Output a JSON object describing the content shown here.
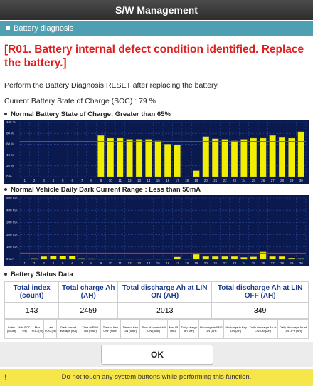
{
  "header": {
    "title": "S/W Management"
  },
  "section": {
    "title": "Battery diagnosis"
  },
  "alert": "[R01. Battery internal defect condition identified. Replace the battery.]",
  "instruction": "Perform the Battery Diagnosis RESET after replacing the battery.",
  "soc_status": "Current Battery State of Charge (SOC) : 79 %",
  "charts": [
    {
      "type": "bar",
      "title": "Normal Battery State of Charge: Greater than 65%",
      "categories": [
        "1",
        "2",
        "3",
        "4",
        "5",
        "6",
        "7",
        "8",
        "9",
        "10",
        "11",
        "12",
        "13",
        "14",
        "15",
        "16",
        "17",
        "18",
        "19",
        "20",
        "21",
        "22",
        "23",
        "24",
        "25",
        "26",
        "27",
        "28",
        "29",
        "30"
      ],
      "values": [
        null,
        null,
        null,
        null,
        null,
        null,
        null,
        null,
        76,
        71,
        71,
        69,
        69,
        69,
        66,
        60,
        59,
        null,
        11,
        74,
        70,
        69,
        66,
        69,
        71,
        71,
        76,
        72,
        71,
        83
      ],
      "color": "#f2ee00",
      "threshold": 65,
      "threshold_color": "#e8262a",
      "ylim": [
        0,
        100
      ],
      "yticks": [
        {
          "value": 0,
          "label": "0 %"
        },
        {
          "value": 20,
          "label": "20 %"
        },
        {
          "value": 40,
          "label": "40 %"
        },
        {
          "value": 60,
          "label": "60 %"
        },
        {
          "value": 80,
          "label": "80 %"
        },
        {
          "value": 100,
          "label": "100 %"
        }
      ],
      "grid": true
    },
    {
      "type": "bar",
      "title": "Normal Vehicle Daily Dark Current Range : Less than 50mA",
      "categories": [
        "1",
        "2",
        "3",
        "4",
        "5",
        "6",
        "7",
        "8",
        "9",
        "10",
        "11",
        "12",
        "13",
        "14",
        "15",
        "16",
        "17",
        "18",
        "19",
        "20",
        "21",
        "22",
        "23",
        "24",
        "25",
        "26",
        "27",
        "28",
        "29",
        "30"
      ],
      "values": [
        null,
        8,
        22,
        25,
        25,
        25,
        8,
        6,
        5,
        5,
        5,
        5,
        5,
        5,
        5,
        5,
        18,
        5,
        40,
        22,
        22,
        22,
        22,
        15,
        20,
        60,
        22,
        22,
        10,
        8
      ],
      "color": "#f2ee00",
      "threshold": 50,
      "threshold_color": "#e8262a",
      "ylim": [
        0,
        500
      ],
      "yticks": [
        {
          "value": 0,
          "label": "0 mA"
        },
        {
          "value": 100,
          "label": "100 mA"
        },
        {
          "value": 200,
          "label": "200 mA"
        },
        {
          "value": 300,
          "label": "300 mA"
        },
        {
          "value": 400,
          "label": "400 mA"
        },
        {
          "value": 500,
          "label": "500 mA"
        }
      ],
      "grid": true
    }
  ],
  "status": {
    "title": "Battery Status Data",
    "summary": {
      "headers": [
        "Total index (count)",
        "Total charge Ah (AH)",
        "Total discharge Ah at LIN ON (AH)",
        "Total discharge Ah at LIN OFF (AH)"
      ],
      "values": [
        143,
        2459,
        2013,
        349
      ]
    },
    "detail_headers": [
      "Index (count)",
      "Min SOC (%)",
      "Max SOC (%)",
      "Last SOC (%)",
      "Dark current average (mA)",
      "Time of ENG ON (hour)",
      "Time of Key OFF (hour)",
      "Time of Key ON (hour)",
      "Time of hazard+tail ON (hour)",
      "Max IR (mΩ)",
      "Daily charge Ah (AH)",
      "Discharge in ENG ON (AH)",
      "Discharge in Key ON (AH)",
      "Daily discharge Ah at LIN ON (AH)",
      "Daily discharge Ah at LIN OFF (AH)"
    ]
  },
  "button": "OK",
  "footer": "Do not touch any system buttons while performing this function."
}
